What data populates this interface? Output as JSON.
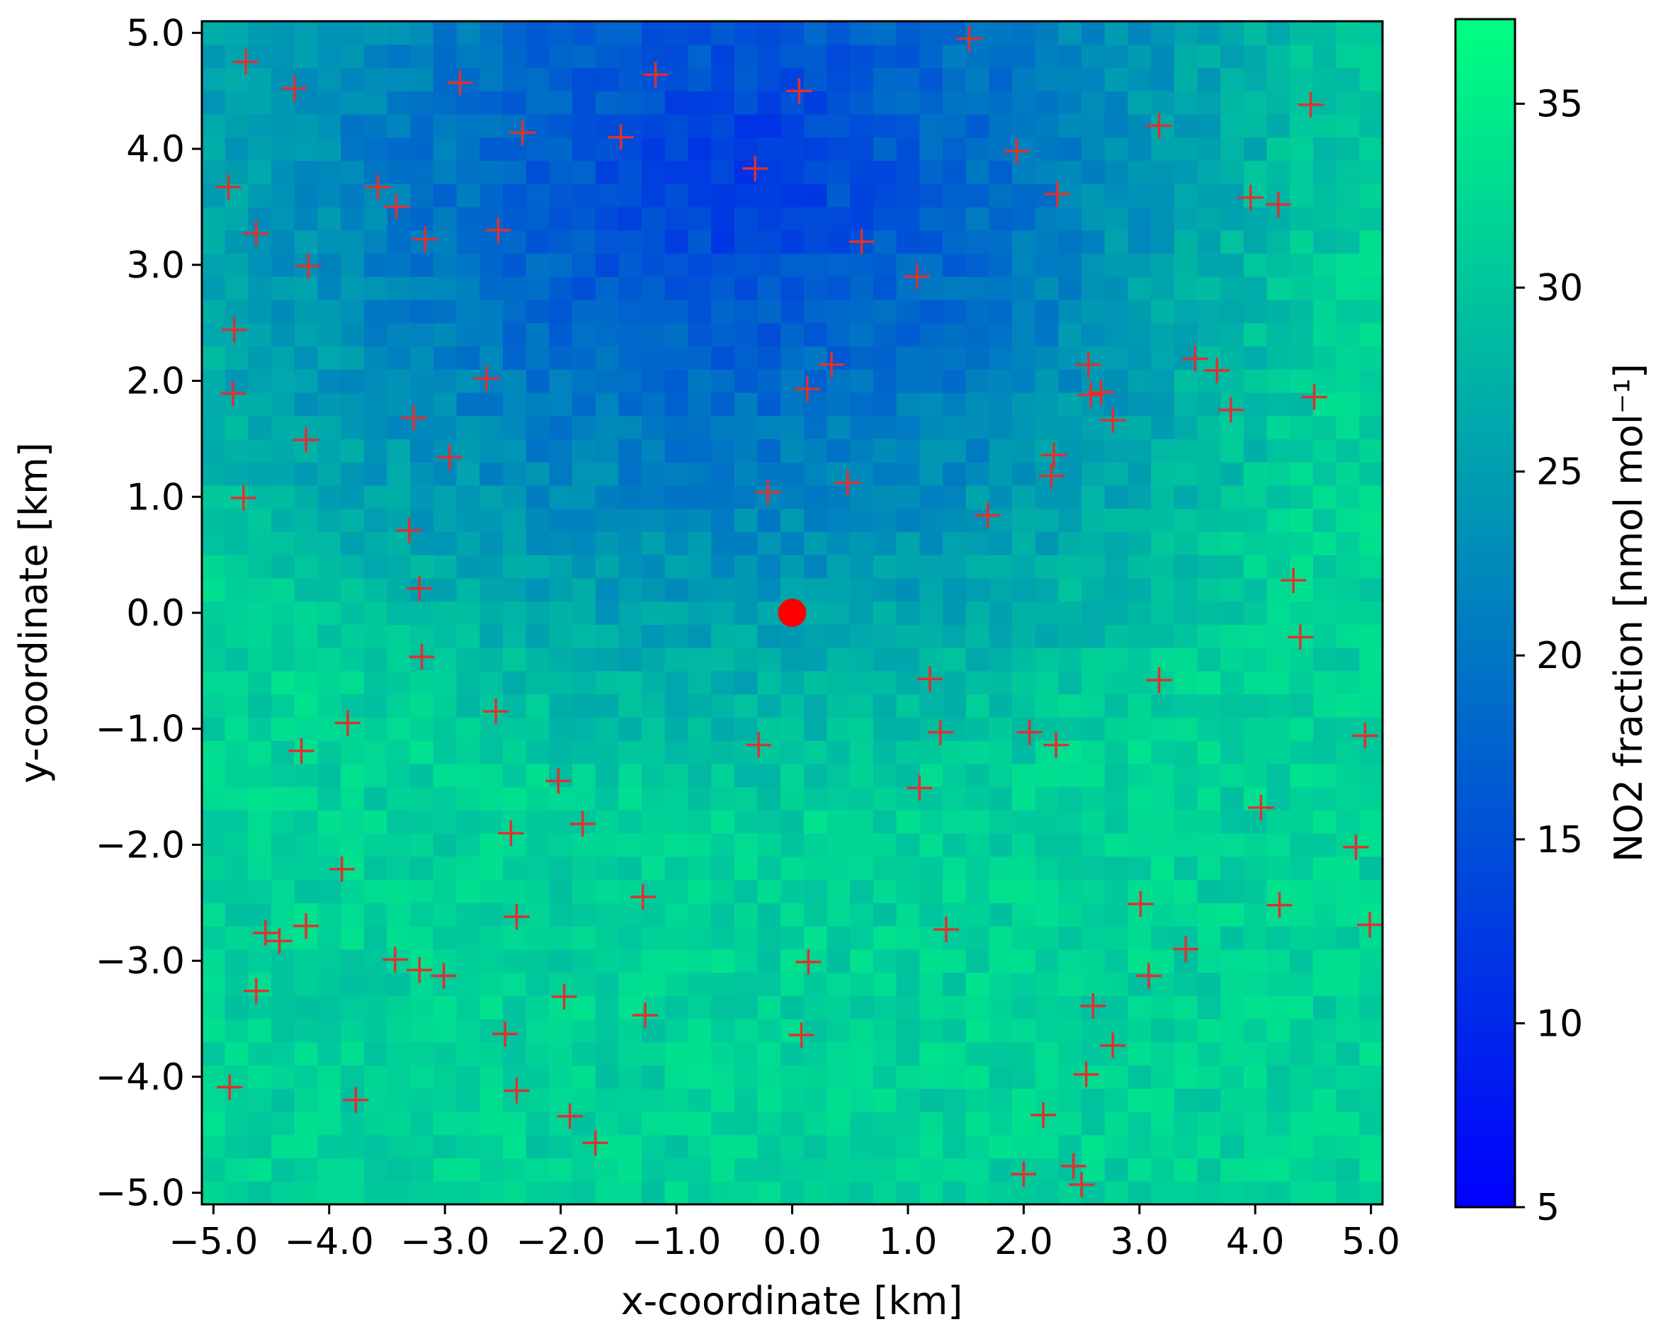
{
  "chart_data": {
    "type": "heatmap",
    "title": "",
    "xlabel": "x-coordinate [km]",
    "ylabel": "y-coordinate [km]",
    "xlim": [
      -5.1,
      5.1
    ],
    "ylim": [
      -5.1,
      5.1
    ],
    "x_ticks": [
      "−5.0",
      "−4.0",
      "−3.0",
      "−2.0",
      "−1.0",
      "0.0",
      "1.0",
      "2.0",
      "3.0",
      "4.0",
      "5.0"
    ],
    "y_ticks": [
      "5.0",
      "4.0",
      "3.0",
      "2.0",
      "1.0",
      "0.0",
      "−1.0",
      "−2.0",
      "−3.0",
      "−4.0",
      "−5.0"
    ],
    "x_tick_values": [
      -5,
      -4,
      -3,
      -2,
      -1,
      0,
      1,
      2,
      3,
      4,
      5
    ],
    "y_tick_values": [
      5,
      4,
      3,
      2,
      1,
      0,
      -1,
      -2,
      -3,
      -4,
      -5
    ],
    "grid": false,
    "colorbar": {
      "label": "NO2 fraction [nmol mol⁻¹]",
      "range": [
        5,
        37.3
      ],
      "ticks": [
        "5",
        "10",
        "15",
        "20",
        "25",
        "30",
        "35"
      ],
      "tick_values": [
        5,
        10,
        15,
        20,
        25,
        30,
        35
      ],
      "colormap": "winter",
      "color_low": "#0000ff",
      "color_high": "#00ff80"
    },
    "field": {
      "resolution_km": 0.2,
      "description_model": "NO2 field low (~10-15) in upper-center, rising to ~30-35 toward lower-left and right edges",
      "low_center": [
        -0.5,
        3.8
      ],
      "high_lower_left": [
        -4.8,
        -2.5
      ],
      "high_right": [
        5.0,
        3.0
      ]
    },
    "source_point": {
      "x": 0.0,
      "y": 0.0,
      "color": "#ff0000"
    },
    "markers": {
      "symbol": "plus",
      "color": "#e03030",
      "points": [
        [
          -4.72,
          4.75
        ],
        [
          -4.3,
          4.52
        ],
        [
          -2.87,
          4.57
        ],
        [
          -1.18,
          4.64
        ],
        [
          0.06,
          4.5
        ],
        [
          1.53,
          4.95
        ],
        [
          4.48,
          4.38
        ],
        [
          -2.33,
          4.14
        ],
        [
          -1.48,
          4.1
        ],
        [
          -0.32,
          3.83
        ],
        [
          1.94,
          3.98
        ],
        [
          3.17,
          4.2
        ],
        [
          -4.87,
          3.67
        ],
        [
          -3.58,
          3.67
        ],
        [
          -3.42,
          3.5
        ],
        [
          2.29,
          3.61
        ],
        [
          3.96,
          3.58
        ],
        [
          4.2,
          3.52
        ],
        [
          -4.63,
          3.27
        ],
        [
          -3.17,
          3.22
        ],
        [
          -2.54,
          3.3
        ],
        [
          0.6,
          3.2
        ],
        [
          -4.18,
          2.99
        ],
        [
          1.08,
          2.9
        ],
        [
          -4.82,
          2.44
        ],
        [
          0.34,
          2.14
        ],
        [
          2.56,
          2.14
        ],
        [
          3.48,
          2.19
        ],
        [
          3.67,
          2.09
        ],
        [
          -2.64,
          2.02
        ],
        [
          -4.83,
          1.89
        ],
        [
          0.13,
          1.93
        ],
        [
          2.58,
          1.88
        ],
        [
          2.67,
          1.9
        ],
        [
          4.51,
          1.86
        ],
        [
          -3.27,
          1.68
        ],
        [
          3.79,
          1.75
        ],
        [
          2.77,
          1.66
        ],
        [
          -4.2,
          1.49
        ],
        [
          -2.96,
          1.34
        ],
        [
          2.26,
          1.36
        ],
        [
          2.24,
          1.18
        ],
        [
          -4.74,
          0.99
        ],
        [
          -0.21,
          1.04
        ],
        [
          0.48,
          1.12
        ],
        [
          1.69,
          0.84
        ],
        [
          -3.31,
          0.71
        ],
        [
          -3.22,
          0.21
        ],
        [
          4.33,
          0.28
        ],
        [
          -3.2,
          -0.38
        ],
        [
          4.39,
          -0.21
        ],
        [
          1.19,
          -0.57
        ],
        [
          3.17,
          -0.58
        ],
        [
          -2.56,
          -0.85
        ],
        [
          -3.84,
          -0.95
        ],
        [
          -4.24,
          -1.19
        ],
        [
          -0.29,
          -1.14
        ],
        [
          1.28,
          -1.03
        ],
        [
          2.05,
          -1.03
        ],
        [
          2.28,
          -1.14
        ],
        [
          4.95,
          -1.06
        ],
        [
          -2.02,
          -1.45
        ],
        [
          1.1,
          -1.51
        ],
        [
          4.05,
          -1.68
        ],
        [
          -2.43,
          -1.9
        ],
        [
          -1.81,
          -1.82
        ],
        [
          -3.89,
          -2.21
        ],
        [
          4.87,
          -2.02
        ],
        [
          -1.29,
          -2.45
        ],
        [
          -2.38,
          -2.62
        ],
        [
          -4.2,
          -2.7
        ],
        [
          -4.55,
          -2.76
        ],
        [
          -4.43,
          -2.83
        ],
        [
          1.33,
          -2.73
        ],
        [
          3.01,
          -2.51
        ],
        [
          4.21,
          -2.52
        ],
        [
          4.99,
          -2.69
        ],
        [
          -3.43,
          -2.99
        ],
        [
          -3.22,
          -3.08
        ],
        [
          -3.01,
          -3.13
        ],
        [
          0.14,
          -3.01
        ],
        [
          3.4,
          -2.9
        ],
        [
          3.08,
          -3.13
        ],
        [
          -4.63,
          -3.26
        ],
        [
          -1.97,
          -3.31
        ],
        [
          2.6,
          -3.39
        ],
        [
          -1.27,
          -3.47
        ],
        [
          -2.48,
          -3.63
        ],
        [
          0.08,
          -3.64
        ],
        [
          2.77,
          -3.73
        ],
        [
          -4.86,
          -4.09
        ],
        [
          -2.38,
          -4.12
        ],
        [
          -3.77,
          -4.2
        ],
        [
          2.54,
          -3.98
        ],
        [
          -1.92,
          -4.34
        ],
        [
          2.17,
          -4.33
        ],
        [
          -1.7,
          -4.57
        ],
        [
          2.0,
          -4.84
        ],
        [
          2.43,
          -4.77
        ],
        [
          2.5,
          -4.93
        ]
      ]
    }
  }
}
